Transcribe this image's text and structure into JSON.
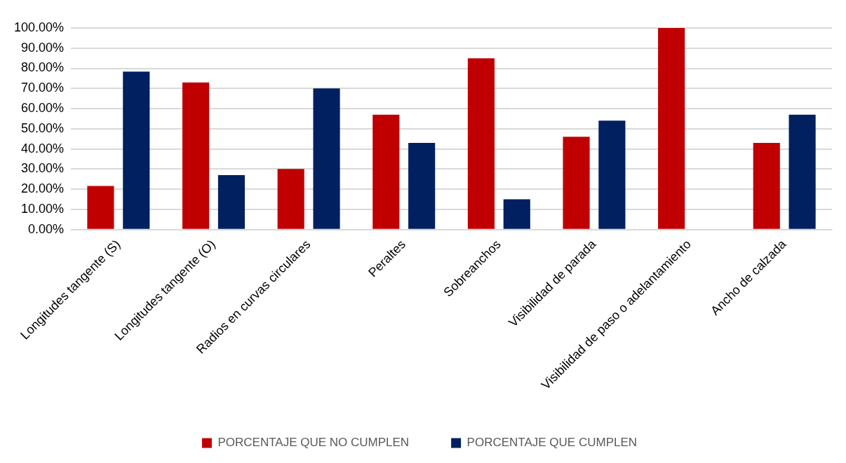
{
  "chart_data": {
    "type": "bar",
    "categories": [
      "Longitudes tangente (S)",
      "Longitudes tangente (O)",
      "Radios en curvas circulares",
      "Peraltes",
      "Sobreanchos",
      "Visibilidad de parada",
      "Visibilidad de paso o adelantamiento",
      "Ancho de calzada"
    ],
    "series": [
      {
        "name": "PORCENTAJE QUE NO CUMPLEN",
        "color": "#c00000",
        "values": [
          21.6,
          73,
          30,
          57,
          85,
          46,
          100,
          43
        ]
      },
      {
        "name": "PORCENTAJE QUE CUMPLEN",
        "color": "#002060",
        "values": [
          78.4,
          27,
          70,
          43,
          15,
          54,
          0,
          57
        ]
      }
    ],
    "ylim": [
      0,
      100
    ],
    "yticks": [
      {
        "value": 0,
        "label": "0.00%"
      },
      {
        "value": 10,
        "label": "10.00%"
      },
      {
        "value": 20,
        "label": "20.00%"
      },
      {
        "value": 30,
        "label": "30.00%"
      },
      {
        "value": 40,
        "label": "40.00%"
      },
      {
        "value": 50,
        "label": "50.00%"
      },
      {
        "value": 60,
        "label": "60.00%"
      },
      {
        "value": 70,
        "label": "70.00%"
      },
      {
        "value": 80,
        "label": "80.00%"
      },
      {
        "value": 90,
        "label": "90.00%"
      },
      {
        "value": 100,
        "label": "100.00%"
      }
    ],
    "grid": "y",
    "legend": "bottom"
  }
}
